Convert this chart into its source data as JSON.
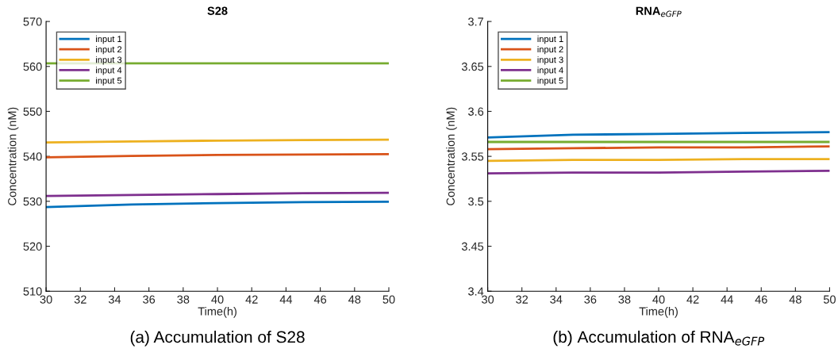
{
  "chart_data": [
    {
      "type": "line",
      "title": "S28",
      "xlabel": "Time(h)",
      "ylabel": "Concentration (nM)",
      "x": [
        30,
        35,
        40,
        45,
        50
      ],
      "series": [
        {
          "name": "input 1",
          "color": "#0072bd",
          "values": [
            528.7,
            529.3,
            529.6,
            529.8,
            529.9
          ]
        },
        {
          "name": "input 2",
          "color": "#d95319",
          "values": [
            539.8,
            540.1,
            540.3,
            540.4,
            540.5
          ]
        },
        {
          "name": "input 3",
          "color": "#edb120",
          "values": [
            543.1,
            543.3,
            543.5,
            543.6,
            543.7
          ]
        },
        {
          "name": "input 4",
          "color": "#7e2f8e",
          "values": [
            531.2,
            531.4,
            531.6,
            531.8,
            531.9
          ]
        },
        {
          "name": "input 5",
          "color": "#77ac30",
          "values": [
            560.7,
            560.7,
            560.7,
            560.7,
            560.7
          ]
        }
      ],
      "xlim": [
        30,
        50
      ],
      "xticks": [
        30,
        32,
        34,
        36,
        38,
        40,
        42,
        44,
        46,
        48,
        50
      ],
      "ylim": [
        510,
        570
      ],
      "yticks": [
        510,
        520,
        530,
        540,
        550,
        560,
        570
      ],
      "grid": false,
      "legend": "top left",
      "marker": "none",
      "line_style": "solid",
      "annotations": [
        "(a) Accumulation of S28"
      ]
    },
    {
      "type": "line",
      "title": "RNA$_{eGFP}$",
      "xlabel": "Time(h)",
      "ylabel": "Concentration (nM)",
      "x": [
        30,
        35,
        40,
        45,
        50
      ],
      "series": [
        {
          "name": "input 1",
          "color": "#0072bd",
          "values": [
            3.571,
            3.574,
            3.575,
            3.576,
            3.577
          ]
        },
        {
          "name": "input 2",
          "color": "#d95319",
          "values": [
            3.558,
            3.559,
            3.56,
            3.56,
            3.561
          ]
        },
        {
          "name": "input 3",
          "color": "#edb120",
          "values": [
            3.545,
            3.546,
            3.546,
            3.547,
            3.547
          ]
        },
        {
          "name": "input 4",
          "color": "#7e2f8e",
          "values": [
            3.531,
            3.532,
            3.532,
            3.533,
            3.534
          ]
        },
        {
          "name": "input 5",
          "color": "#77ac30",
          "values": [
            3.566,
            3.566,
            3.566,
            3.566,
            3.566
          ]
        }
      ],
      "xlim": [
        30,
        50
      ],
      "xticks": [
        30,
        32,
        34,
        36,
        38,
        40,
        42,
        44,
        46,
        48,
        50
      ],
      "ylim": [
        3.4,
        3.7
      ],
      "yticks": [
        3.4,
        3.45,
        3.5,
        3.55,
        3.6,
        3.65,
        3.7
      ],
      "grid": false,
      "legend": "top left",
      "marker": "none",
      "line_style": "solid",
      "annotations": [
        "(b) Accumulation of RNA$_{eGFP}$"
      ]
    }
  ]
}
